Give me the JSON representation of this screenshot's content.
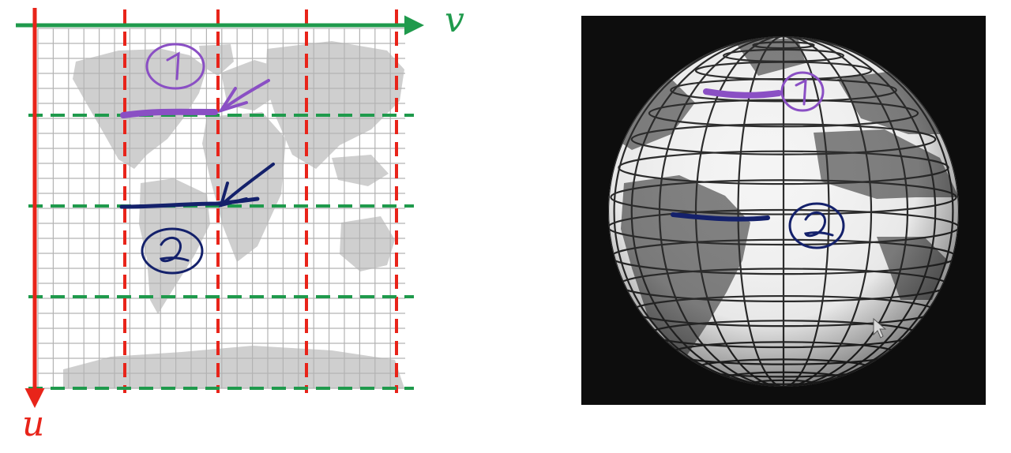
{
  "axes": {
    "u_label": "u",
    "v_label": "v",
    "u_color": "#e8241a",
    "v_color": "#1f9a4c"
  },
  "annotations": [
    {
      "number": "1",
      "color": "#8a4fc4"
    },
    {
      "number": "2",
      "color": "#14216b"
    }
  ],
  "colors": {
    "land": "#cfcfcf",
    "grid": "#b3b3b3",
    "globe_background": "#0d0d0d",
    "globe_ocean": "#f4f4f4",
    "globe_land": "#808080"
  }
}
